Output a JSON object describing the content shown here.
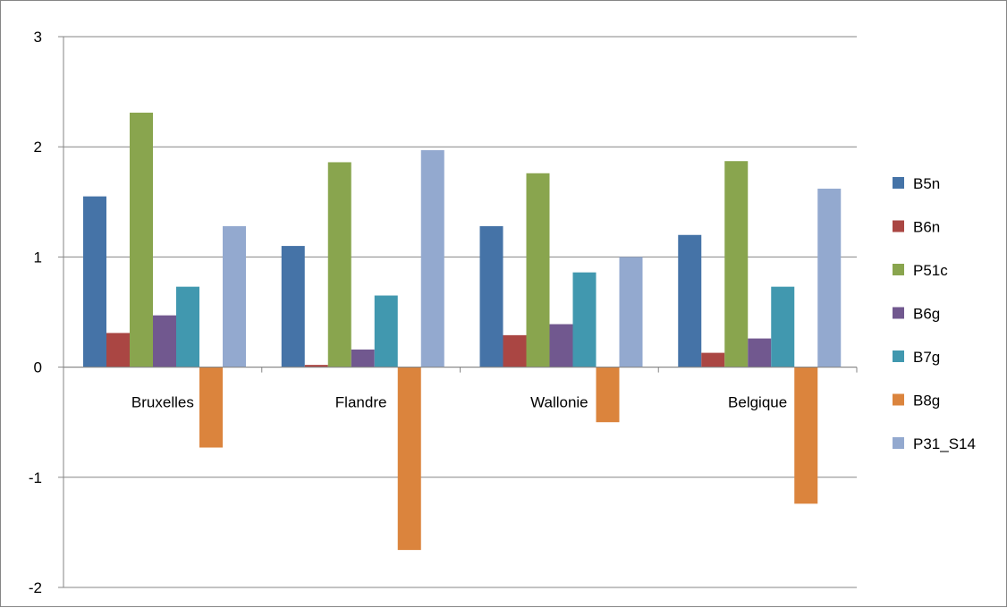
{
  "chart_data": {
    "type": "bar",
    "title": "",
    "xlabel": "",
    "ylabel": "",
    "categories": [
      "Bruxelles",
      "Flandre",
      "Wallonie",
      "Belgique"
    ],
    "ylim": [
      -2,
      3
    ],
    "yticks": [
      3,
      2,
      1,
      0,
      -1,
      -2
    ],
    "grid": true,
    "legend": "right",
    "series": [
      {
        "name": "B5n",
        "color": "#4573A7",
        "values": [
          1.55,
          1.1,
          1.28,
          1.2
        ]
      },
      {
        "name": "B6n",
        "color": "#AA4643",
        "values": [
          0.31,
          0.02,
          0.29,
          0.13
        ]
      },
      {
        "name": "P51c",
        "color": "#89A54E",
        "values": [
          2.31,
          1.86,
          1.76,
          1.87
        ]
      },
      {
        "name": "B6g",
        "color": "#71588F",
        "values": [
          0.47,
          0.16,
          0.39,
          0.26
        ]
      },
      {
        "name": "B7g",
        "color": "#4198AF",
        "values": [
          0.73,
          0.65,
          0.86,
          0.73
        ]
      },
      {
        "name": "B8g",
        "color": "#DB843D",
        "values": [
          -0.73,
          -1.66,
          -0.5,
          -1.24
        ]
      },
      {
        "name": "P31_S14",
        "color": "#93A9CF",
        "values": [
          1.28,
          1.97,
          1.0,
          1.62
        ]
      }
    ]
  }
}
